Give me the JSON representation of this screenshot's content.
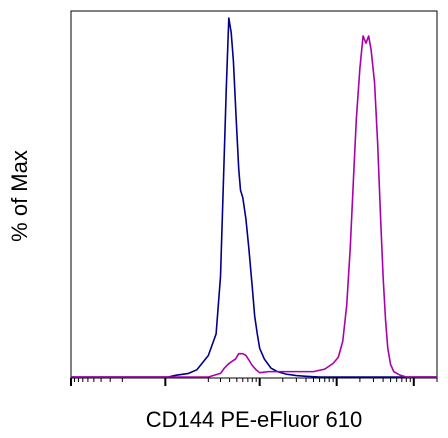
{
  "chart_data": {
    "type": "line",
    "title": "",
    "xlabel": "CD144 PE-eFluor 610",
    "ylabel": "% of Max",
    "x_scale": "biexponential",
    "grid": false,
    "legend": "none",
    "xlim": [
      -1000,
      200000
    ],
    "ylim": [
      0,
      100
    ],
    "series": [
      {
        "color": "#00008b",
        "points": [
          [
            -1000,
            0
          ],
          [
            10,
            0
          ],
          [
            40,
            0.5
          ],
          [
            90,
            1
          ],
          [
            130,
            2
          ],
          [
            200,
            6
          ],
          [
            260,
            12
          ],
          [
            300,
            28
          ],
          [
            330,
            55
          ],
          [
            360,
            80
          ],
          [
            390,
            100
          ],
          [
            420,
            96
          ],
          [
            450,
            88
          ],
          [
            490,
            72
          ],
          [
            530,
            58
          ],
          [
            560,
            52
          ],
          [
            600,
            50
          ],
          [
            660,
            44
          ],
          [
            720,
            36
          ],
          [
            800,
            25
          ],
          [
            860,
            17
          ],
          [
            930,
            12
          ],
          [
            1000,
            8
          ],
          [
            1150,
            5
          ],
          [
            1400,
            2.5
          ],
          [
            1700,
            1.5
          ],
          [
            2200,
            0.8
          ],
          [
            3000,
            0.4
          ],
          [
            4000,
            0.2
          ],
          [
            6000,
            0
          ],
          [
            200000,
            0
          ]
        ]
      },
      {
        "color": "#aa00aa",
        "points": [
          [
            -1000,
            0
          ],
          [
            200,
            0
          ],
          [
            300,
            1
          ],
          [
            340,
            2.5
          ],
          [
            380,
            3.5
          ],
          [
            420,
            4.2
          ],
          [
            480,
            5
          ],
          [
            530,
            6.5
          ],
          [
            600,
            6.5
          ],
          [
            660,
            6
          ],
          [
            720,
            4.8
          ],
          [
            800,
            3.2
          ],
          [
            900,
            2
          ],
          [
            1000,
            1.2
          ],
          [
            1300,
            1.5
          ],
          [
            1700,
            1.5
          ],
          [
            2500,
            1.5
          ],
          [
            3500,
            1.5
          ],
          [
            5000,
            1.5
          ],
          [
            7000,
            2.2
          ],
          [
            9000,
            3.8
          ],
          [
            10500,
            5.5
          ],
          [
            12000,
            10
          ],
          [
            13500,
            20
          ],
          [
            15000,
            36
          ],
          [
            16500,
            55
          ],
          [
            18000,
            72
          ],
          [
            20000,
            86
          ],
          [
            22000,
            95
          ],
          [
            24000,
            93
          ],
          [
            26000,
            95
          ],
          [
            28000,
            91
          ],
          [
            31000,
            82
          ],
          [
            34000,
            65
          ],
          [
            37000,
            45
          ],
          [
            40000,
            28
          ],
          [
            43000,
            16
          ],
          [
            46000,
            8
          ],
          [
            50000,
            3.5
          ],
          [
            55000,
            1.5
          ],
          [
            65000,
            0.6
          ],
          [
            80000,
            0
          ],
          [
            200000,
            0
          ]
        ]
      }
    ]
  }
}
